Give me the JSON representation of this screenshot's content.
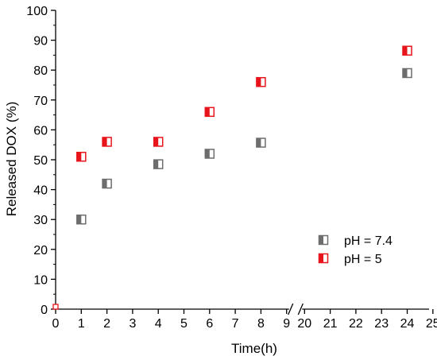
{
  "chart_data": {
    "type": "scatter",
    "title": "",
    "xlabel": "Time(h)",
    "ylabel": "Released DOX (%)",
    "ylim": [
      0,
      100
    ],
    "y_ticks": [
      "0",
      "10",
      "20",
      "30",
      "40",
      "50",
      "60",
      "70",
      "80",
      "90",
      "100"
    ],
    "x_axis_break": [
      9,
      20
    ],
    "x_ticks": [
      "0",
      "1",
      "2",
      "3",
      "4",
      "5",
      "6",
      "7",
      "8",
      "9",
      "20",
      "21",
      "22",
      "23",
      "24",
      "25"
    ],
    "legend_position": "bottom-right",
    "series": [
      {
        "name": "pH = 7.4",
        "color": "#6d6d6d",
        "points": [
          [
            1,
            30
          ],
          [
            2,
            42
          ],
          [
            4,
            48.5
          ],
          [
            6,
            52
          ],
          [
            8,
            55.7
          ],
          [
            24,
            79
          ]
        ]
      },
      {
        "name": "pH = 5",
        "color": "#e8141b",
        "points": [
          [
            0,
            0
          ],
          [
            1,
            51
          ],
          [
            2,
            56
          ],
          [
            4,
            56
          ],
          [
            6,
            66
          ],
          [
            8,
            76
          ],
          [
            24,
            86.5
          ]
        ]
      }
    ]
  }
}
